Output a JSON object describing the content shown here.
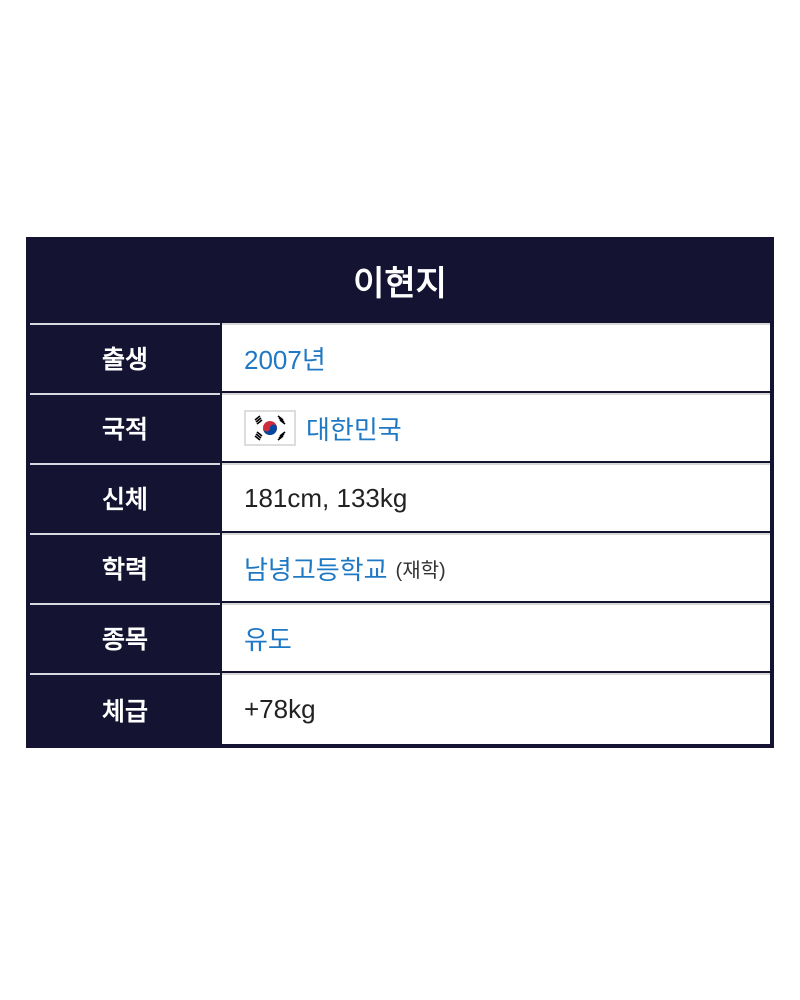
{
  "title": "이현지",
  "rows": [
    {
      "label": "출생",
      "value": "2007년",
      "link": true
    },
    {
      "label": "국적",
      "value": "대한민국",
      "link": true,
      "icon": "south-korea-flag-icon"
    },
    {
      "label": "신체",
      "value": "181cm, 133kg",
      "link": false
    },
    {
      "label": "학력",
      "value": "남녕고등학교",
      "note": "(재학)",
      "link": true
    },
    {
      "label": "종목",
      "value": "유도",
      "link": true
    },
    {
      "label": "체급",
      "value": "+78kg",
      "link": false
    }
  ],
  "colors": {
    "header_bg": "#141432",
    "link": "#1f78c4",
    "text": "#222222"
  }
}
